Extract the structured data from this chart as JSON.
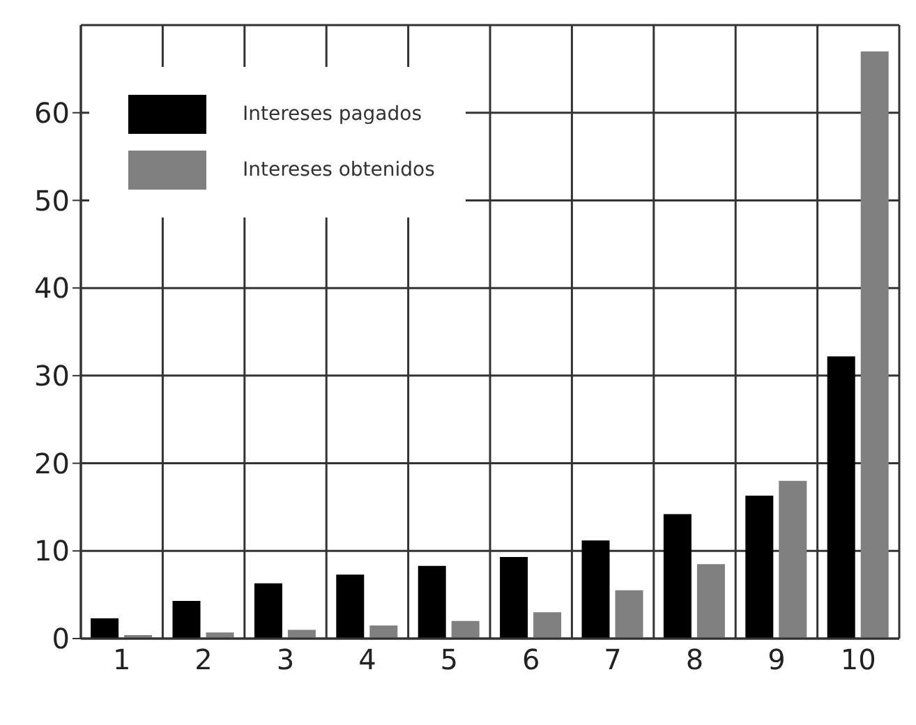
{
  "chart_data": {
    "type": "bar",
    "categories": [
      "1",
      "2",
      "3",
      "4",
      "5",
      "6",
      "7",
      "8",
      "9",
      "10"
    ],
    "series": [
      {
        "name": "Intereses pagados",
        "color": "#000000",
        "values": [
          2.3,
          4.3,
          6.3,
          7.3,
          8.3,
          9.3,
          11.2,
          14.2,
          16.3,
          32.2
        ]
      },
      {
        "name": "Intereses obtenidos",
        "color": "#808080",
        "values": [
          0.4,
          0.7,
          1.0,
          1.5,
          2.0,
          3.0,
          5.5,
          8.5,
          18.0,
          67.0
        ]
      }
    ],
    "ylim": [
      0,
      70
    ],
    "yticks": [
      0,
      10,
      20,
      30,
      40,
      50,
      60
    ],
    "grid": true,
    "legend": "top left"
  }
}
